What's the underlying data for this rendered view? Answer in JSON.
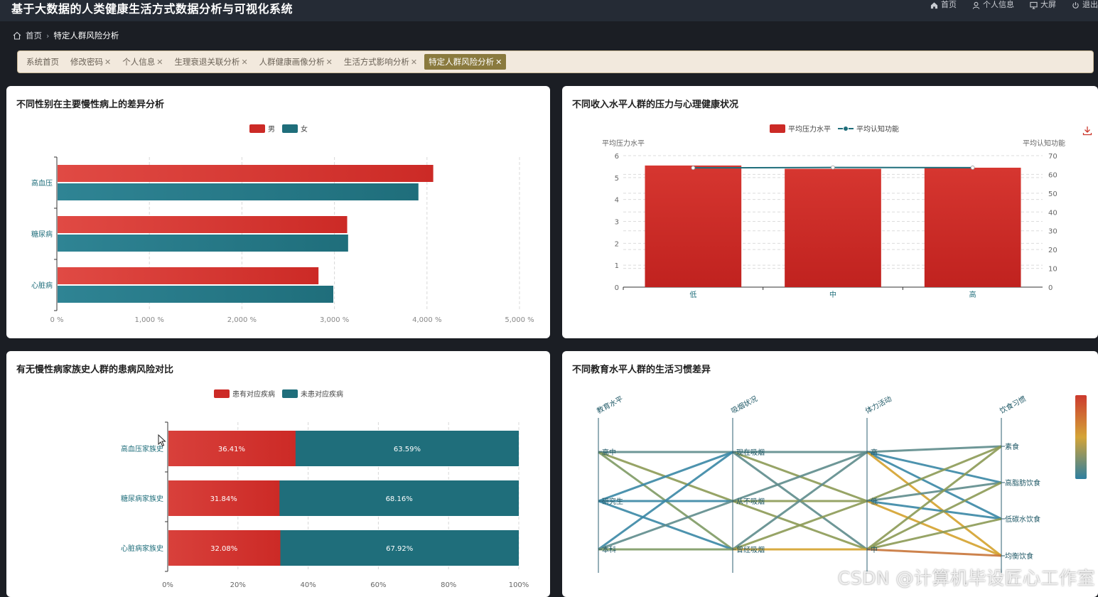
{
  "app": {
    "title": "基于大数据的人类健康生活方式数据分析与可视化系统"
  },
  "top_nav": [
    {
      "label": "首页",
      "icon": "home-icon"
    },
    {
      "label": "个人信息",
      "icon": "user-icon"
    },
    {
      "label": "大屏",
      "icon": "monitor-icon"
    },
    {
      "label": "退出",
      "icon": "power-icon"
    }
  ],
  "breadcrumb": {
    "home": "首页",
    "current": "特定人群风险分析"
  },
  "tabs": [
    {
      "label": "系统首页",
      "closable": false,
      "active": false
    },
    {
      "label": "修改密码",
      "closable": true,
      "active": false
    },
    {
      "label": "个人信息",
      "closable": true,
      "active": false
    },
    {
      "label": "生理衰退关联分析",
      "closable": true,
      "active": false
    },
    {
      "label": "人群健康画像分析",
      "closable": true,
      "active": false
    },
    {
      "label": "生活方式影响分析",
      "closable": true,
      "active": false
    },
    {
      "label": "特定人群风险分析",
      "closable": true,
      "active": true
    }
  ],
  "colors": {
    "red": "#cc2a26",
    "teal": "#1f6e7b"
  },
  "chart1": {
    "title": "不同性别在主要慢性病上的差异分析",
    "chart_data": {
      "type": "bar",
      "orientation": "horizontal",
      "categories": [
        "高血压",
        "糖尿病",
        "心脏病"
      ],
      "series": [
        {
          "name": "男",
          "values": [
            4060,
            3130,
            2820
          ]
        },
        {
          "name": "女",
          "values": [
            3900,
            3140,
            2980
          ]
        }
      ],
      "xlim": [
        0,
        5000
      ],
      "xticks": [
        "0 %",
        "1,000 %",
        "2,000 %",
        "3,000 %",
        "4,000 %",
        "5,000 %"
      ],
      "legend_position": "top-center",
      "grid": true
    }
  },
  "chart2": {
    "title": "不同收入水平人群的压力与心理健康状况",
    "chart_data": {
      "type": "bar",
      "categories": [
        "低",
        "中",
        "高"
      ],
      "series": [
        {
          "name": "平均压力水平",
          "type": "bar",
          "values": [
            5.55,
            5.4,
            5.45
          ]
        },
        {
          "name": "平均认知功能",
          "type": "line",
          "values": [
            63.5,
            63.7,
            63.6
          ]
        }
      ],
      "ylabel_left": "平均压力水平",
      "ylabel_right": "平均认知功能",
      "ylim_left": [
        0,
        6
      ],
      "ylim_right": [
        0,
        70
      ],
      "yticks_left": [
        "0",
        "1",
        "2",
        "3",
        "4",
        "5",
        "6"
      ],
      "yticks_right": [
        "0",
        "10",
        "20",
        "30",
        "40",
        "50",
        "60",
        "70"
      ],
      "legend_position": "top-center",
      "grid": true
    }
  },
  "chart3": {
    "title": "有无慢性病家族史人群的患病风险对比",
    "chart_data": {
      "type": "bar",
      "orientation": "horizontal",
      "stacked": true,
      "categories": [
        "高血压家族史",
        "糖尿病家族史",
        "心脏病家族史"
      ],
      "series": [
        {
          "name": "患有对应疾病",
          "values": [
            36.41,
            31.84,
            32.08
          ]
        },
        {
          "name": "未患对应疾病",
          "values": [
            63.59,
            68.16,
            67.92
          ]
        }
      ],
      "labels": [
        [
          "36.41%",
          "63.59%"
        ],
        [
          "31.84%",
          "68.16%"
        ],
        [
          "32.08%",
          "67.92%"
        ]
      ],
      "xlim": [
        0,
        100
      ],
      "xticks": [
        "0%",
        "20%",
        "40%",
        "60%",
        "80%",
        "100%"
      ],
      "legend_position": "top-center",
      "grid": true
    }
  },
  "chart4": {
    "title": "不同教育水平人群的生活习惯差异",
    "chart_data": {
      "type": "parallel",
      "axes": [
        {
          "name": "教育水平",
          "categories": [
            "高中",
            "研究生",
            "本科"
          ]
        },
        {
          "name": "吸烟状况",
          "categories": [
            "现在吸烟",
            "从不吸烟",
            "曾经吸烟"
          ]
        },
        {
          "name": "体力活动",
          "categories": [
            "高",
            "低",
            "中"
          ]
        },
        {
          "name": "饮食习惯",
          "categories": [
            "素食",
            "高脂肪饮食",
            "低碳水饮食",
            "均衡饮食"
          ]
        }
      ],
      "visual_map": {
        "type": "continuous",
        "colors": [
          "#2e7fa0",
          "#d4a437",
          "#cc3a2e"
        ]
      }
    }
  },
  "watermark": "CSDN @计算机毕设匠心工作室"
}
